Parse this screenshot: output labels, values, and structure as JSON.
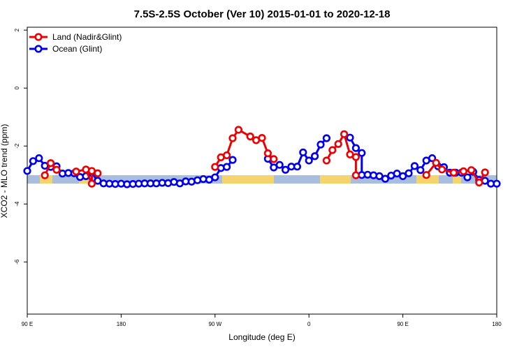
{
  "chart_data": {
    "type": "line",
    "title": "7.5S-2.5S October (Ver 10)   2015-01-01 to 2020-12-18",
    "xlabel": "Longitude (deg E)",
    "ylabel": "XCO2 - MLO trend (ppm)",
    "xlim": [
      90,
      450
    ],
    "ylim": [
      -7.8,
      2.1
    ],
    "yticks": [
      2,
      0,
      -2,
      -4,
      -6
    ],
    "xticks": [
      {
        "value": 90,
        "label": "90 E"
      },
      {
        "value": 162,
        "label": "180"
      },
      {
        "value": 234,
        "label": "90 W"
      },
      {
        "value": 306,
        "label": "0"
      },
      {
        "value": 378,
        "label": "90 E"
      },
      {
        "value": 450,
        "label": "180"
      }
    ],
    "grid": false,
    "legend_position": "top-left",
    "colors": {
      "land": "#ee0000",
      "ocean": "#0000ee",
      "ocean_band": "#a9bede",
      "land_band": "#f5d46e"
    },
    "series": [
      {
        "name": "Land (Nadir&Glint)",
        "color": "#ee0000",
        "points": [
          [
            103.5,
            -3.01
          ],
          [
            108,
            -2.59
          ],
          [
            112.5,
            -2.82
          ],
          [
            127.5,
            -2.88
          ],
          [
            135,
            -2.81
          ],
          [
            139.5,
            -3.3
          ],
          [
            139.5,
            -2.86
          ],
          [
            144,
            -2.94
          ],
          [
            234,
            -2.72
          ],
          [
            238.5,
            -2.39
          ],
          [
            243,
            -2.32
          ],
          [
            247.5,
            -1.73
          ],
          [
            252,
            -1.44
          ],
          [
            261,
            -1.67
          ],
          [
            265.5,
            -1.8
          ],
          [
            270,
            -1.72
          ],
          [
            274.5,
            -2.25
          ],
          [
            279,
            -2.45
          ],
          [
            319.5,
            -2.5
          ],
          [
            324,
            -2.14
          ],
          [
            328.5,
            -1.93
          ],
          [
            333,
            -1.59
          ],
          [
            337.5,
            -2.29
          ],
          [
            342,
            -2.38
          ],
          [
            342,
            -3.01
          ],
          [
            396,
            -3.0
          ],
          [
            403.5,
            -2.58
          ],
          [
            408,
            -2.81
          ],
          [
            417,
            -2.92
          ],
          [
            424.5,
            -2.87
          ],
          [
            430.5,
            -2.83
          ],
          [
            436.5,
            -3.26
          ],
          [
            441,
            -2.91
          ]
        ]
      },
      {
        "name": "Ocean (Glint)",
        "color": "#0000ee",
        "points": [
          [
            90,
            -2.86
          ],
          [
            94.5,
            -2.52
          ],
          [
            99,
            -2.42
          ],
          [
            103.5,
            -2.68
          ],
          [
            108,
            -2.72
          ],
          [
            112.5,
            -2.7
          ],
          [
            117,
            -2.95
          ],
          [
            121.5,
            -2.93
          ],
          [
            126,
            -2.94
          ],
          [
            130.5,
            -3.07
          ],
          [
            135,
            -3.04
          ],
          [
            139.5,
            -2.93
          ],
          [
            144,
            -3.2
          ],
          [
            148.5,
            -3.29
          ],
          [
            153,
            -3.3
          ],
          [
            157.5,
            -3.31
          ],
          [
            162,
            -3.3
          ],
          [
            166.5,
            -3.32
          ],
          [
            171,
            -3.31
          ],
          [
            175.5,
            -3.3
          ],
          [
            180,
            -3.29
          ],
          [
            184.5,
            -3.29
          ],
          [
            189,
            -3.29
          ],
          [
            193.5,
            -3.27
          ],
          [
            198,
            -3.28
          ],
          [
            202.5,
            -3.24
          ],
          [
            207,
            -3.29
          ],
          [
            211.5,
            -3.22
          ],
          [
            216,
            -3.23
          ],
          [
            220.5,
            -3.18
          ],
          [
            225,
            -3.14
          ],
          [
            229.5,
            -3.16
          ],
          [
            234,
            -3.08
          ],
          [
            238.5,
            -2.76
          ],
          [
            243,
            -2.72
          ],
          [
            247.5,
            -2.48
          ],
          [
            274.5,
            -2.44
          ],
          [
            279,
            -2.74
          ],
          [
            283.5,
            -2.65
          ],
          [
            288,
            -2.82
          ],
          [
            292.5,
            -2.71
          ],
          [
            297,
            -2.71
          ],
          [
            301.5,
            -2.22
          ],
          [
            306,
            -2.5
          ],
          [
            310.5,
            -2.35
          ],
          [
            315,
            -1.95
          ],
          [
            319.5,
            -1.73
          ],
          [
            337.5,
            -1.71
          ],
          [
            342,
            -2.07
          ],
          [
            346.5,
            -2.24
          ],
          [
            346.5,
            -3.0
          ],
          [
            351,
            -2.99
          ],
          [
            355.5,
            -3.01
          ],
          [
            360,
            -3.04
          ],
          [
            364.5,
            -3.13
          ],
          [
            369,
            -3.02
          ],
          [
            373.5,
            -2.95
          ],
          [
            378,
            -3.04
          ],
          [
            382.5,
            -2.94
          ],
          [
            387,
            -2.69
          ],
          [
            391.5,
            -2.83
          ],
          [
            396,
            -2.5
          ],
          [
            400.5,
            -2.42
          ],
          [
            405,
            -2.7
          ],
          [
            409.5,
            -2.73
          ],
          [
            414,
            -2.92
          ],
          [
            418.5,
            -2.92
          ],
          [
            423,
            -2.92
          ],
          [
            427.5,
            -3.08
          ],
          [
            432,
            -2.89
          ],
          [
            436.5,
            -3.17
          ],
          [
            441,
            -3.2
          ],
          [
            445.5,
            -3.3
          ],
          [
            450,
            -3.3
          ]
        ]
      }
    ]
  }
}
